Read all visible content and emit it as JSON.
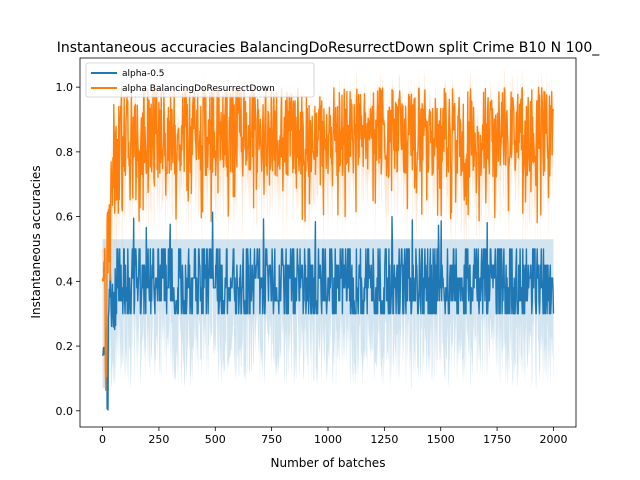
{
  "chart_data": {
    "type": "line",
    "title": "Instantaneous accuracies BalancingDoResurrectDown split Crime B10 N 100_",
    "xlabel": "Number of batches",
    "ylabel": "Instantaneous accuracies",
    "xlim": [
      -100,
      2100
    ],
    "ylim": [
      -0.05,
      1.09
    ],
    "xticks": [
      0,
      250,
      500,
      750,
      1000,
      1250,
      1500,
      1750,
      2000
    ],
    "yticks": [
      0.0,
      0.2,
      0.4,
      0.6,
      0.8,
      1.0
    ],
    "xtick_labels": [
      "0",
      "250",
      "500",
      "750",
      "1000",
      "1250",
      "1500",
      "1750",
      "2000"
    ],
    "ytick_labels": [
      "0.0",
      "0.2",
      "0.4",
      "0.6",
      "0.8",
      "1.0"
    ],
    "legend_position": "upper-left",
    "series": [
      {
        "name": "alpha-0.5",
        "color": "#1f77b4",
        "x_range": [
          0,
          2000
        ],
        "values_summary": {
          "start": 0.17,
          "min": 0.0,
          "typical_low": 0.3,
          "typical_high": 0.5,
          "mean": 0.41
        },
        "band_range": [
          0.07,
          0.62
        ]
      },
      {
        "name": "alpha BalancingDoResurrectDown",
        "color": "#ff7f0e",
        "x_range": [
          0,
          2000
        ],
        "values_summary": {
          "start": 0.3,
          "min": 0.05,
          "typical_low": 0.75,
          "typical_high": 1.0,
          "mean": 0.88
        },
        "band_range": [
          0.5,
          1.05
        ]
      }
    ]
  }
}
